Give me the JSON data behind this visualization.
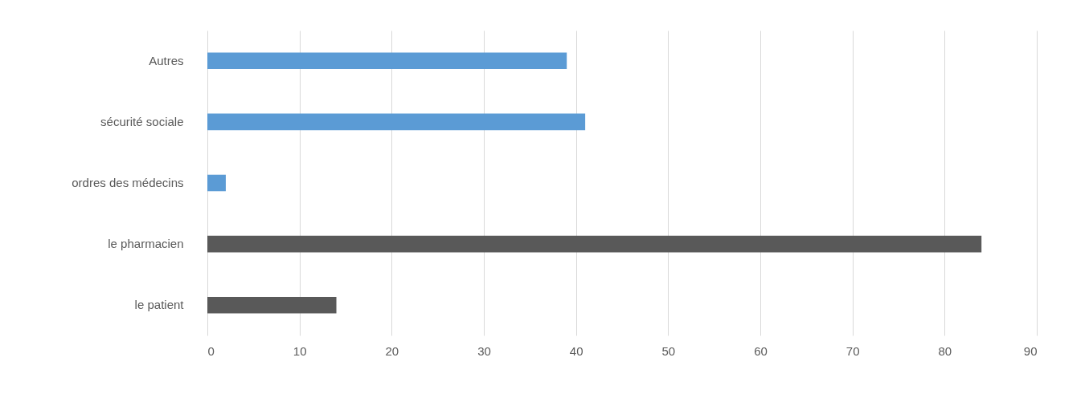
{
  "chart_data": {
    "type": "bar",
    "orientation": "horizontal",
    "categories": [
      "Autres",
      "sécurité sociale",
      "ordres des médecins",
      "le pharmacien",
      "le patient"
    ],
    "values": [
      39,
      41,
      2,
      84,
      14
    ],
    "colors": [
      "#5b9bd5",
      "#5b9bd5",
      "#5b9bd5",
      "#595959",
      "#595959"
    ],
    "xlim": [
      0,
      90
    ],
    "xticks": [
      0,
      10,
      20,
      30,
      40,
      50,
      60,
      70,
      80,
      90
    ],
    "grid": "x"
  }
}
